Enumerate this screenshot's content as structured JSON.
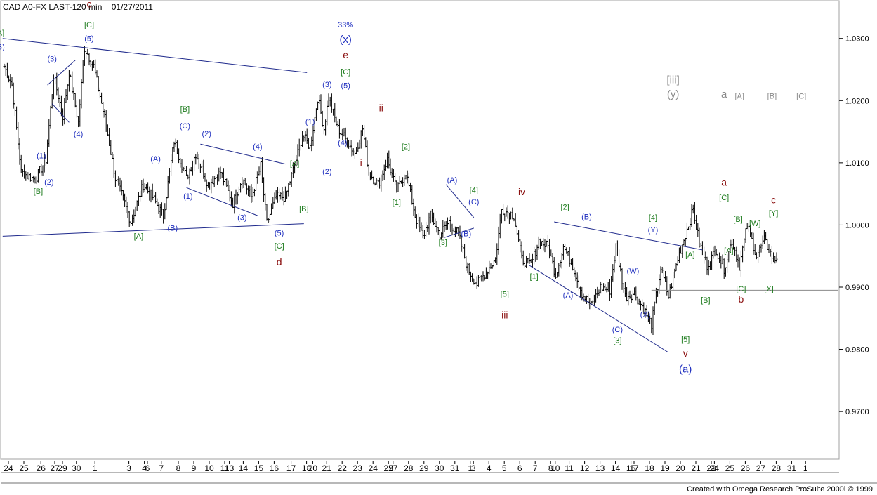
{
  "header": {
    "instrument": "CAD A0-FX LAST-120 min",
    "date": "01/27/2011"
  },
  "footer": {
    "credit": "Created with Omega Research ProSuite 2000i © 1999"
  },
  "colors": {
    "bars": "#000000",
    "trendlines": "#1f2a8c",
    "label_blue": "#1f2fbf",
    "label_green": "#1b7a1b",
    "label_red": "#8b1010",
    "label_gray": "#8a8a8a"
  },
  "chart_data": {
    "type": "ohlc",
    "title": "",
    "xlabel": "",
    "ylabel": "",
    "ylim": [
      0.9655,
      1.0355
    ],
    "y_ticks": [
      {
        "value": 1.03,
        "label": "1.0300"
      },
      {
        "value": 1.02,
        "label": "1.0200"
      },
      {
        "value": 1.01,
        "label": "1.0100"
      },
      {
        "value": 1.0,
        "label": "1.0000"
      },
      {
        "value": 0.99,
        "label": "0.9900"
      },
      {
        "value": 0.98,
        "label": "0.9800"
      },
      {
        "value": 0.97,
        "label": "0.9700"
      }
    ],
    "x_ticks": [
      {
        "i": 0,
        "label": "24"
      },
      {
        "i": 10,
        "label": "25"
      },
      {
        "i": 21,
        "label": "26"
      },
      {
        "i": 30,
        "label": "27"
      },
      {
        "i": 35,
        "label": "29"
      },
      {
        "i": 44,
        "label": "30"
      },
      {
        "i": 56,
        "label": "1"
      },
      {
        "i": 78,
        "label": "3"
      },
      {
        "i": 88,
        "label": "4"
      },
      {
        "i": 90,
        "label": "6"
      },
      {
        "i": 99,
        "label": "7"
      },
      {
        "i": 110,
        "label": "8"
      },
      {
        "i": 120,
        "label": "9"
      },
      {
        "i": 130,
        "label": "10"
      },
      {
        "i": 140,
        "label": "11"
      },
      {
        "i": 143,
        "label": "13"
      },
      {
        "i": 152,
        "label": "14"
      },
      {
        "i": 162,
        "label": "15"
      },
      {
        "i": 172,
        "label": "16"
      },
      {
        "i": 183,
        "label": "17"
      },
      {
        "i": 193,
        "label": "18"
      },
      {
        "i": 197,
        "label": "20"
      },
      {
        "i": 206,
        "label": "21"
      },
      {
        "i": 216,
        "label": "22"
      },
      {
        "i": 226,
        "label": "23"
      },
      {
        "i": 236,
        "label": "24"
      },
      {
        "i": 246,
        "label": "25"
      },
      {
        "i": 249,
        "label": "27"
      },
      {
        "i": 259,
        "label": "28"
      },
      {
        "i": 269,
        "label": "29"
      },
      {
        "i": 279,
        "label": "30"
      },
      {
        "i": 289,
        "label": "31"
      },
      {
        "i": 299,
        "label": "1"
      },
      {
        "i": 301,
        "label": "3"
      },
      {
        "i": 311,
        "label": "4"
      },
      {
        "i": 321,
        "label": "5"
      },
      {
        "i": 331,
        "label": "6"
      },
      {
        "i": 341,
        "label": "7"
      },
      {
        "i": 351,
        "label": "8"
      },
      {
        "i": 354,
        "label": "10"
      },
      {
        "i": 363,
        "label": "11"
      },
      {
        "i": 373,
        "label": "12"
      },
      {
        "i": 383,
        "label": "13"
      },
      {
        "i": 393,
        "label": "14"
      },
      {
        "i": 403,
        "label": "15"
      },
      {
        "i": 405,
        "label": "17"
      },
      {
        "i": 415,
        "label": "18"
      },
      {
        "i": 425,
        "label": "19"
      },
      {
        "i": 435,
        "label": "20"
      },
      {
        "i": 445,
        "label": "21"
      },
      {
        "i": 455,
        "label": "22"
      },
      {
        "i": 457,
        "label": "24"
      },
      {
        "i": 467,
        "label": "25"
      },
      {
        "i": 477,
        "label": "26"
      },
      {
        "i": 487,
        "label": "27"
      },
      {
        "i": 497,
        "label": "28"
      },
      {
        "i": 507,
        "label": "31"
      },
      {
        "i": 516,
        "label": "1"
      }
    ],
    "pivots": [
      [
        0,
        1.0255
      ],
      [
        5,
        1.0225
      ],
      [
        11,
        1.0085
      ],
      [
        20,
        1.0073
      ],
      [
        27,
        1.0105
      ],
      [
        32,
        1.024
      ],
      [
        38,
        1.0175
      ],
      [
        42,
        1.0245
      ],
      [
        48,
        1.0165
      ],
      [
        52,
        1.0285
      ],
      [
        58,
        1.0255
      ],
      [
        66,
        1.016
      ],
      [
        72,
        1.0075
      ],
      [
        78,
        1.0035
      ],
      [
        82,
        1.0005
      ],
      [
        90,
        1.0065
      ],
      [
        96,
        1.0045
      ],
      [
        103,
        1.0015
      ],
      [
        110,
        1.0135
      ],
      [
        118,
        1.0075
      ],
      [
        124,
        1.0115
      ],
      [
        132,
        1.0065
      ],
      [
        140,
        1.0085
      ],
      [
        148,
        1.0035
      ],
      [
        154,
        1.0075
      ],
      [
        160,
        1.0045
      ],
      [
        166,
        1.0095
      ],
      [
        170,
        1.0003
      ],
      [
        176,
        1.0045
      ],
      [
        182,
        1.0045
      ],
      [
        189,
        1.0105
      ],
      [
        193,
        1.0145
      ],
      [
        198,
        1.0125
      ],
      [
        203,
        1.0205
      ],
      [
        207,
        1.0155
      ],
      [
        210,
        1.0205
      ],
      [
        216,
        1.0155
      ],
      [
        222,
        1.0135
      ],
      [
        227,
        1.0115
      ],
      [
        232,
        1.0155
      ],
      [
        236,
        1.0085
      ],
      [
        242,
        1.0065
      ],
      [
        248,
        1.0105
      ],
      [
        254,
        1.0055
      ],
      [
        260,
        1.0085
      ],
      [
        266,
        1.0015
      ],
      [
        271,
        0.998
      ],
      [
        276,
        1.0015
      ],
      [
        282,
        0.9985
      ],
      [
        288,
        1.0005
      ],
      [
        294,
        0.9985
      ],
      [
        300,
        0.993
      ],
      [
        306,
        0.9905
      ],
      [
        312,
        0.9925
      ],
      [
        318,
        0.9945
      ],
      [
        322,
        1.0025
      ],
      [
        330,
        1.0015
      ],
      [
        335,
        0.9945
      ],
      [
        341,
        0.9935
      ],
      [
        346,
        0.9975
      ],
      [
        352,
        0.9965
      ],
      [
        357,
        0.992
      ],
      [
        362,
        0.9965
      ],
      [
        368,
        0.9935
      ],
      [
        374,
        0.989
      ],
      [
        380,
        0.987
      ],
      [
        386,
        0.99
      ],
      [
        392,
        0.9895
      ],
      [
        396,
        0.9965
      ],
      [
        402,
        0.9885
      ],
      [
        408,
        0.989
      ],
      [
        414,
        0.9865
      ],
      [
        419,
        0.984
      ],
      [
        425,
        0.993
      ],
      [
        430,
        0.9885
      ],
      [
        436,
        0.9945
      ],
      [
        441,
        0.9985
      ],
      [
        446,
        1.0025
      ],
      [
        450,
        0.997
      ],
      [
        455,
        0.9935
      ],
      [
        461,
        0.996
      ],
      [
        466,
        0.993
      ],
      [
        471,
        0.9975
      ],
      [
        476,
        0.9935
      ],
      [
        481,
        1.0
      ],
      [
        487,
        0.995
      ],
      [
        492,
        0.9975
      ],
      [
        498,
        0.9945
      ],
      [
        500,
        0.9945
      ]
    ],
    "trendlines": [
      {
        "from": [
          -1,
          1.03
        ],
        "to": [
          196,
          1.0245
        ]
      },
      {
        "from": [
          -1,
          0.9982
        ],
        "to": [
          194,
          1.0002
        ]
      },
      {
        "from": [
          28,
          1.0225
        ],
        "to": [
          46,
          1.0265
        ]
      },
      {
        "from": [
          31,
          1.0195
        ],
        "to": [
          42,
          1.0165
        ]
      },
      {
        "from": [
          127,
          1.013
        ],
        "to": [
          182,
          1.0098
        ]
      },
      {
        "from": [
          118,
          1.006
        ],
        "to": [
          164,
          1.0015
        ]
      },
      {
        "from": [
          286,
          1.0065
        ],
        "to": [
          304,
          1.0012
        ]
      },
      {
        "from": [
          285,
          0.998
        ],
        "to": [
          304,
          0.9995
        ]
      },
      {
        "from": [
          356,
          1.0005
        ],
        "to": [
          452,
          0.996
        ]
      },
      {
        "from": [
          340,
          0.9935
        ],
        "to": [
          430,
          0.9795
        ]
      },
      {
        "from": [
          419,
          0.9895
        ],
        "to": [
          540,
          0.9895
        ]
      }
    ],
    "wave_labels": [
      {
        "i": -3,
        "y": 1.0305,
        "text": "[A]",
        "c": "green"
      },
      {
        "i": -3,
        "y": 1.0282,
        "text": "(B)",
        "c": "blue"
      },
      {
        "i": 55,
        "y": 1.035,
        "text": "c",
        "c": "red"
      },
      {
        "i": 55,
        "y": 1.0318,
        "text": "[C]",
        "c": "green"
      },
      {
        "i": 55,
        "y": 1.0296,
        "text": "(5)",
        "c": "blue"
      },
      {
        "i": 31,
        "y": 1.0263,
        "text": "(3)",
        "c": "blue"
      },
      {
        "i": 48,
        "y": 1.0142,
        "text": "(4)",
        "c": "blue"
      },
      {
        "i": 24,
        "y": 1.0107,
        "text": "(1)",
        "c": "blue"
      },
      {
        "i": 29,
        "y": 1.0065,
        "text": "(2)",
        "c": "blue"
      },
      {
        "i": 22,
        "y": 1.005,
        "text": "[B]",
        "c": "green"
      },
      {
        "i": 98,
        "y": 1.0102,
        "text": "(A)",
        "c": "blue"
      },
      {
        "i": 117,
        "y": 1.0182,
        "text": "[B]",
        "c": "green"
      },
      {
        "i": 117,
        "y": 1.0155,
        "text": "(C)",
        "c": "blue"
      },
      {
        "i": 131,
        "y": 1.0143,
        "text": "(2)",
        "c": "blue"
      },
      {
        "i": 119,
        "y": 1.0042,
        "text": "(1)",
        "c": "blue"
      },
      {
        "i": 164,
        "y": 1.0122,
        "text": "(4)",
        "c": "blue"
      },
      {
        "i": 154,
        "y": 1.0008,
        "text": "(3)",
        "c": "blue"
      },
      {
        "i": 87,
        "y": 0.9978,
        "text": "[A]",
        "c": "green"
      },
      {
        "i": 109,
        "y": 0.9991,
        "text": "(B)",
        "c": "blue"
      },
      {
        "i": 188,
        "y": 1.0095,
        "text": "[A]",
        "c": "green"
      },
      {
        "i": 194,
        "y": 1.0022,
        "text": "[B]",
        "c": "green"
      },
      {
        "i": 178,
        "y": 0.9983,
        "text": "(5)",
        "c": "blue"
      },
      {
        "i": 178,
        "y": 0.9962,
        "text": "[C]",
        "c": "green"
      },
      {
        "i": 178,
        "y": 0.9935,
        "text": "d",
        "c": "red"
      },
      {
        "i": 198,
        "y": 1.0162,
        "text": "(1)",
        "c": "blue"
      },
      {
        "i": 209,
        "y": 1.0082,
        "text": "(2)",
        "c": "blue"
      },
      {
        "i": 209,
        "y": 1.0222,
        "text": "(3)",
        "c": "blue"
      },
      {
        "i": 219,
        "y": 1.0128,
        "text": "(4)",
        "c": "blue"
      },
      {
        "i": 221,
        "y": 1.0318,
        "text": "33%",
        "c": "blue"
      },
      {
        "i": 221,
        "y": 1.0293,
        "text": "(x)",
        "c": "blue",
        "big": true
      },
      {
        "i": 221,
        "y": 1.0268,
        "text": "e",
        "c": "red"
      },
      {
        "i": 221,
        "y": 1.0242,
        "text": "[C]",
        "c": "green"
      },
      {
        "i": 221,
        "y": 1.022,
        "text": "(5)",
        "c": "blue"
      },
      {
        "i": 231,
        "y": 1.0095,
        "text": "i",
        "c": "red"
      },
      {
        "i": 244,
        "y": 1.0183,
        "text": "ii",
        "c": "red"
      },
      {
        "i": 260,
        "y": 1.0122,
        "text": "[2]",
        "c": "green"
      },
      {
        "i": 254,
        "y": 1.0032,
        "text": "[1]",
        "c": "green"
      },
      {
        "i": 290,
        "y": 1.0068,
        "text": "(A)",
        "c": "blue"
      },
      {
        "i": 304,
        "y": 1.0052,
        "text": "[4]",
        "c": "green"
      },
      {
        "i": 304,
        "y": 1.0033,
        "text": "(C)",
        "c": "blue"
      },
      {
        "i": 299,
        "y": 0.9982,
        "text": "(B)",
        "c": "blue"
      },
      {
        "i": 284,
        "y": 0.9968,
        "text": "[3]",
        "c": "green"
      },
      {
        "i": 324,
        "y": 0.9885,
        "text": "[5]",
        "c": "green"
      },
      {
        "i": 324,
        "y": 0.985,
        "text": "iii",
        "c": "red"
      },
      {
        "i": 335,
        "y": 1.0048,
        "text": "iv",
        "c": "red"
      },
      {
        "i": 363,
        "y": 1.0025,
        "text": "[2]",
        "c": "green"
      },
      {
        "i": 377,
        "y": 1.0009,
        "text": "(B)",
        "c": "blue"
      },
      {
        "i": 343,
        "y": 0.9913,
        "text": "[1]",
        "c": "green"
      },
      {
        "i": 365,
        "y": 0.9883,
        "text": "(A)",
        "c": "blue"
      },
      {
        "i": 407,
        "y": 0.9922,
        "text": "(W)",
        "c": "blue"
      },
      {
        "i": 420,
        "y": 1.0008,
        "text": "[4]",
        "c": "green"
      },
      {
        "i": 420,
        "y": 0.9988,
        "text": "(Y)",
        "c": "blue"
      },
      {
        "i": 415,
        "y": 0.9852,
        "text": "(X)",
        "c": "blue"
      },
      {
        "i": 397,
        "y": 0.9828,
        "text": "(C)",
        "c": "blue"
      },
      {
        "i": 397,
        "y": 0.981,
        "text": "[3]",
        "c": "green"
      },
      {
        "i": 444,
        "y": 0.9948,
        "text": "[A]",
        "c": "green"
      },
      {
        "i": 441,
        "y": 0.9812,
        "text": "[5]",
        "c": "green"
      },
      {
        "i": 441,
        "y": 0.9788,
        "text": "v",
        "c": "red"
      },
      {
        "i": 441,
        "y": 0.9763,
        "text": "(a)",
        "c": "blue",
        "big": true
      },
      {
        "i": 454,
        "y": 0.9875,
        "text": "[B]",
        "c": "green"
      },
      {
        "i": 466,
        "y": 1.0063,
        "text": "a",
        "c": "red"
      },
      {
        "i": 466,
        "y": 1.004,
        "text": "[C]",
        "c": "green"
      },
      {
        "i": 475,
        "y": 1.0005,
        "text": "[B]",
        "c": "green"
      },
      {
        "i": 469,
        "y": 0.9955,
        "text": "[A]",
        "c": "green"
      },
      {
        "i": 486,
        "y": 0.9998,
        "text": "[W]",
        "c": "green"
      },
      {
        "i": 498,
        "y": 1.0035,
        "text": "c",
        "c": "red"
      },
      {
        "i": 498,
        "y": 1.0015,
        "text": "[Y]",
        "c": "green"
      },
      {
        "i": 477,
        "y": 0.9893,
        "text": "[C]",
        "c": "green"
      },
      {
        "i": 477,
        "y": 0.9875,
        "text": "b",
        "c": "red"
      },
      {
        "i": 495,
        "y": 0.9893,
        "text": "[X]",
        "c": "green"
      },
      {
        "i": 433,
        "y": 1.0228,
        "text": "[iii]",
        "c": "gray",
        "big": true
      },
      {
        "i": 433,
        "y": 1.0205,
        "text": "(y)",
        "c": "gray",
        "big": true
      },
      {
        "i": 466,
        "y": 1.0205,
        "text": "a",
        "c": "gray",
        "big": true
      },
      {
        "i": 476,
        "y": 1.0203,
        "text": "[A]",
        "c": "gray"
      },
      {
        "i": 497,
        "y": 1.0203,
        "text": "[B]",
        "c": "gray"
      },
      {
        "i": 516,
        "y": 1.0203,
        "text": "[C]",
        "c": "gray"
      }
    ]
  }
}
